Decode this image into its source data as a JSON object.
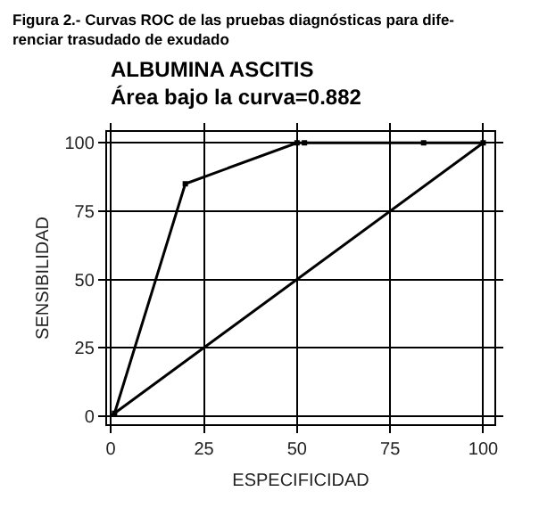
{
  "chart_data": {
    "type": "line",
    "title": "ALBUMINA ASCITIS",
    "subtitle": "Área bajo la curva=0.882",
    "xlabel": "ESPECIFICIDAD",
    "ylabel": "SENSIBILIDAD",
    "annotations": [
      "Figura 2.- Curvas ROC de las pruebas diagnósticas para dife-\nrenciar trasudado de exudado"
    ],
    "series": [
      {
        "color": "#000000",
        "x": [
          1,
          20,
          50,
          52,
          84,
          100
        ],
        "values": [
          1,
          85,
          100,
          100,
          100,
          100
        ],
        "marker": "square"
      },
      {
        "color": "#000000",
        "x": [
          0,
          100
        ],
        "values": [
          0,
          100
        ],
        "marker": "none"
      }
    ],
    "xlim": [
      -1,
      103
    ],
    "ylim": [
      -3,
      104
    ],
    "xticks": [
      0,
      25,
      50,
      75,
      100
    ],
    "yticks": [
      0,
      25,
      50,
      75,
      100
    ],
    "grid": true,
    "line_style": "solid"
  }
}
